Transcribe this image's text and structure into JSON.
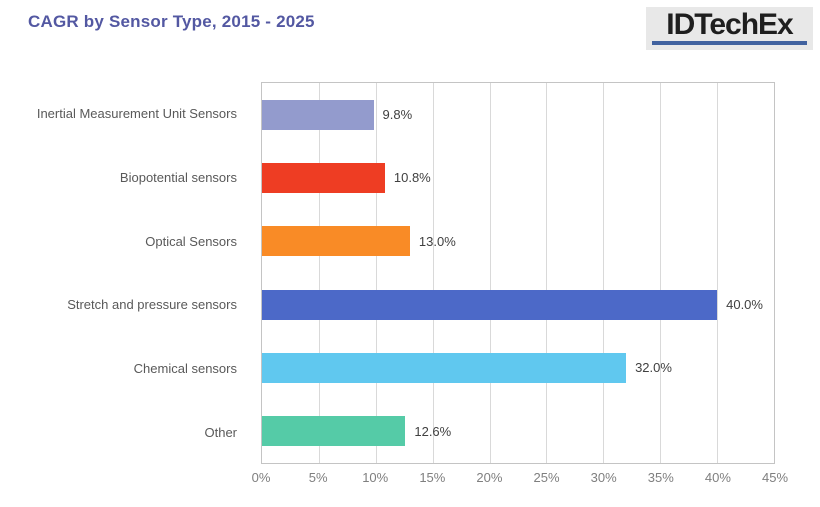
{
  "header": {
    "title": "CAGR by Sensor Type, 2015 - 2025",
    "title_color": "#5358A2",
    "logo": {
      "text": "IDTechEx",
      "text_color": "#1E1E1E",
      "underline_color": "#41629F",
      "background_color": "#E8E8E8"
    }
  },
  "chart_data": {
    "type": "bar",
    "orientation": "horizontal",
    "title": "CAGR by Sensor Type, 2015 - 2025",
    "categories": [
      "Inertial Measurement Unit Sensors",
      "Biopotential sensors",
      "Optical Sensors",
      "Stretch and pressure sensors",
      "Chemical sensors",
      "Other"
    ],
    "values": [
      9.8,
      10.8,
      13.0,
      40.0,
      32.0,
      12.6
    ],
    "value_labels": [
      "9.8%",
      "10.8%",
      "13.0%",
      "40.0%",
      "32.0%",
      "12.6%"
    ],
    "bar_colors": [
      "#939BCD",
      "#EE3D23",
      "#F98B26",
      "#4C69C8",
      "#60C8EF",
      "#55CBA7"
    ],
    "xlabel": "",
    "ylabel": "",
    "xlim": [
      0,
      45
    ],
    "x_tick_step": 5,
    "x_ticks": [
      "0%",
      "5%",
      "10%",
      "15%",
      "20%",
      "25%",
      "30%",
      "35%",
      "40%",
      "45%"
    ],
    "grid": "vertical",
    "gridline_color": "#D9D9D9",
    "plot_border_color": "#C4C4C4",
    "axis_tick_label_color": "#7F7F7F",
    "category_label_color": "#595959",
    "value_label_color": "#404040",
    "legend": "none"
  }
}
